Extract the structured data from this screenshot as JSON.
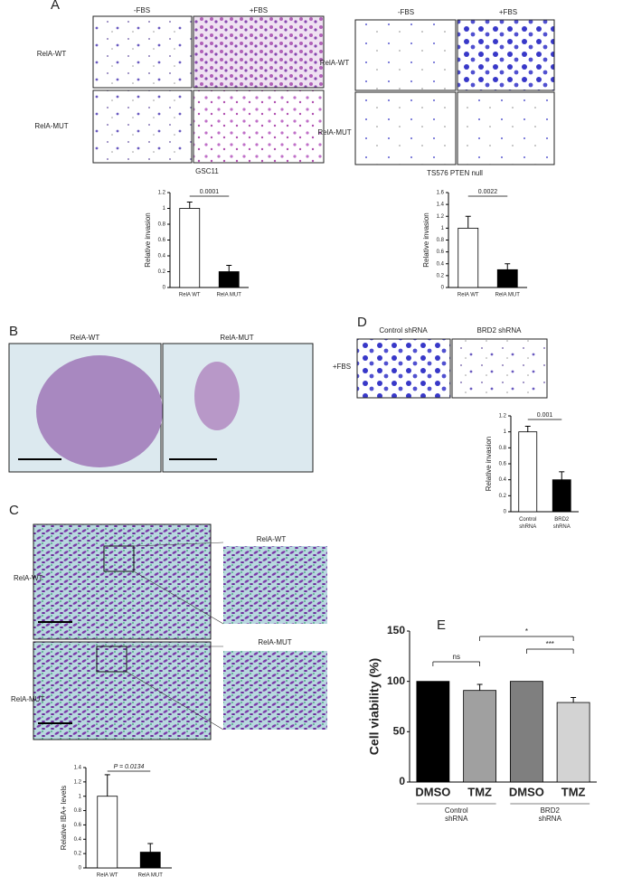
{
  "panels": {
    "A": {
      "label": "A",
      "left": {
        "cols": [
          "-FBS",
          "+FBS"
        ],
        "rows": [
          "RelA-WT",
          "RelA-MUT"
        ],
        "caption": "GSC11"
      },
      "right": {
        "cols": [
          "-FBS",
          "+FBS"
        ],
        "rows": [
          "RelA-WT",
          "RelA-MUT"
        ],
        "caption": "TS576 PTEN null"
      }
    },
    "B": {
      "label": "B",
      "cols": [
        "RelA-WT",
        "RelA-MUT"
      ]
    },
    "C": {
      "label": "C",
      "rows": [
        "RelA-WT",
        "RelA-MUT"
      ],
      "zooms": [
        "RelA-WT",
        "RelA-MUT"
      ]
    },
    "D": {
      "label": "D",
      "cols": [
        "Control shRNA",
        "BRD2 shRNA"
      ],
      "row": "+FBS"
    },
    "E": {
      "label": "E"
    }
  },
  "chart_data": [
    {
      "type": "bar",
      "ylabel": "Relative invasion",
      "categories": [
        "RelA WT",
        "RelA MUT"
      ],
      "values": [
        1.0,
        0.2
      ],
      "errors": [
        0.08,
        0.08
      ],
      "colors": [
        "#ffffff",
        "#000000"
      ],
      "ylim": [
        0,
        1.2
      ],
      "yticks": [
        0,
        0.2,
        0.4,
        0.6,
        0.8,
        1,
        1.2
      ],
      "annotations": [
        "0.0001"
      ]
    },
    {
      "type": "bar",
      "ylabel": "Relative invasion",
      "categories": [
        "RelA WT",
        "RelA MUT"
      ],
      "values": [
        1.0,
        0.3
      ],
      "errors": [
        0.2,
        0.1
      ],
      "colors": [
        "#ffffff",
        "#000000"
      ],
      "ylim": [
        0,
        1.6
      ],
      "yticks": [
        0,
        0.2,
        0.4,
        0.6,
        0.8,
        1,
        1.2,
        1.4,
        1.6
      ],
      "annotations": [
        "0.0022"
      ]
    },
    {
      "type": "bar",
      "ylabel": "Relative invasion",
      "categories": [
        "Control shRNA",
        "BRD2 shRNA"
      ],
      "values": [
        1.0,
        0.4
      ],
      "errors": [
        0.07,
        0.1
      ],
      "colors": [
        "#ffffff",
        "#000000"
      ],
      "ylim": [
        0,
        1.2
      ],
      "yticks": [
        0,
        0.2,
        0.4,
        0.6,
        0.8,
        1,
        1.2
      ],
      "annotations": [
        "0.001"
      ]
    },
    {
      "type": "bar",
      "ylabel": "Relative IBA+ levels",
      "categories": [
        "RelA WT",
        "RelA MUT"
      ],
      "values": [
        1.0,
        0.22
      ],
      "errors": [
        0.3,
        0.12
      ],
      "colors": [
        "#ffffff",
        "#000000"
      ],
      "ylim": [
        0,
        1.4
      ],
      "yticks": [
        0,
        0.2,
        0.4,
        0.6,
        0.8,
        1,
        1.2,
        1.4
      ],
      "annotations": [
        "P = 0.0134"
      ]
    },
    {
      "type": "bar",
      "ylabel": "Cell viability (%)",
      "categories": [
        "DMSO",
        "TMZ",
        "DMSO",
        "TMZ"
      ],
      "groups": [
        "Control shRNA",
        "BRD2 shRNA"
      ],
      "values": [
        100,
        91,
        100,
        79
      ],
      "errors": [
        0,
        6,
        0,
        5
      ],
      "colors": [
        "#000000",
        "#a0a0a0",
        "#7f7f7f",
        "#d3d3d3"
      ],
      "ylim": [
        0,
        150
      ],
      "yticks": [
        0,
        50,
        100,
        150
      ],
      "annotations": [
        "ns",
        "*",
        "***"
      ]
    }
  ]
}
